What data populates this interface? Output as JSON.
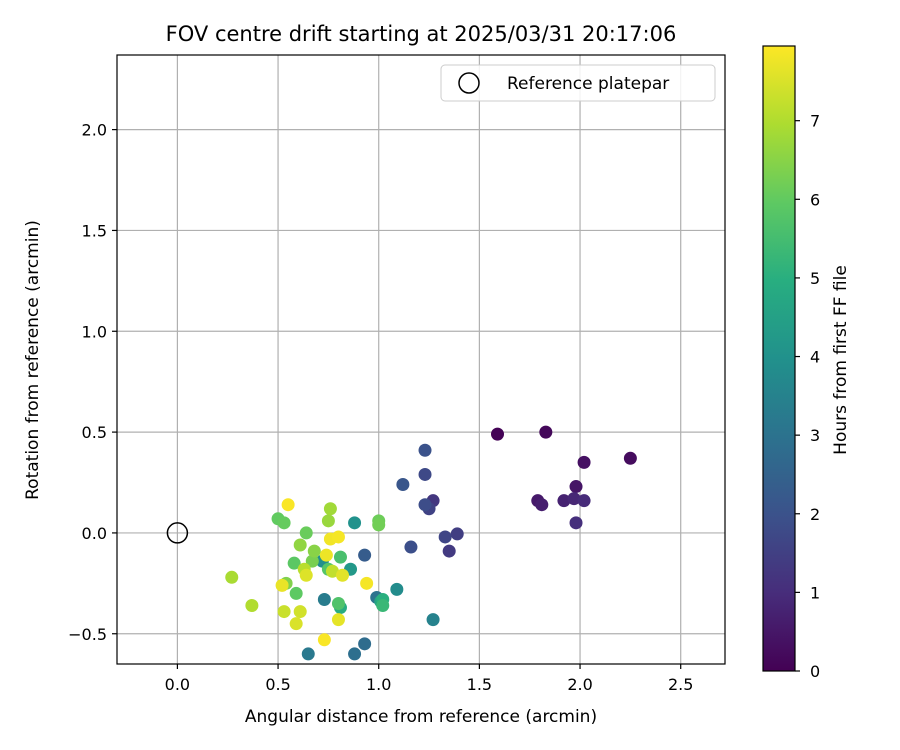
{
  "chart_data": {
    "type": "scatter",
    "title": "FOV centre drift starting at 2025/03/31 20:17:06",
    "xlabel": "Angular distance from reference (arcmin)",
    "ylabel": "Rotation from reference (arcmin)",
    "colorbar_label": "Hours from first FF file",
    "xlim": [
      -0.3,
      2.72
    ],
    "ylim": [
      -0.65,
      2.37
    ],
    "xticks": [
      0.0,
      0.5,
      1.0,
      1.5,
      2.0,
      2.5
    ],
    "xtick_labels": [
      "0.0",
      "0.5",
      "1.0",
      "1.5",
      "2.0",
      "2.5"
    ],
    "yticks": [
      -0.5,
      0.0,
      0.5,
      1.0,
      1.5,
      2.0
    ],
    "ytick_labels": [
      "−0.5",
      "0.0",
      "0.5",
      "1.0",
      "1.5",
      "2.0"
    ],
    "colorbar_range": [
      0,
      7.95
    ],
    "colorbar_ticks": [
      0,
      1,
      2,
      3,
      4,
      5,
      6,
      7
    ],
    "colorbar_tick_labels": [
      "0",
      "1",
      "2",
      "3",
      "4",
      "5",
      "6",
      "7"
    ],
    "colormap": "viridis",
    "grid": true,
    "legend": {
      "position": "top-right",
      "label": "Reference platepar"
    },
    "reference_point": {
      "x": 0.0,
      "y": 0.0
    },
    "points": [
      {
        "x": 1.59,
        "y": 0.49,
        "c": 0.05
      },
      {
        "x": 1.83,
        "y": 0.5,
        "c": 0.15
      },
      {
        "x": 2.25,
        "y": 0.37,
        "c": 0.25
      },
      {
        "x": 2.02,
        "y": 0.35,
        "c": 0.35
      },
      {
        "x": 1.98,
        "y": 0.23,
        "c": 0.45
      },
      {
        "x": 1.79,
        "y": 0.16,
        "c": 0.55
      },
      {
        "x": 1.81,
        "y": 0.14,
        "c": 0.65
      },
      {
        "x": 1.92,
        "y": 0.16,
        "c": 0.75
      },
      {
        "x": 1.97,
        "y": 0.17,
        "c": 0.85
      },
      {
        "x": 2.02,
        "y": 0.16,
        "c": 0.95
      },
      {
        "x": 1.98,
        "y": 0.05,
        "c": 1.05
      },
      {
        "x": 1.27,
        "y": 0.16,
        "c": 1.25
      },
      {
        "x": 1.35,
        "y": -0.09,
        "c": 1.35
      },
      {
        "x": 1.39,
        "y": -0.005,
        "c": 1.45
      },
      {
        "x": 1.25,
        "y": 0.12,
        "c": 1.55
      },
      {
        "x": 1.33,
        "y": -0.02,
        "c": 1.65
      },
      {
        "x": 1.23,
        "y": 0.29,
        "c": 1.75
      },
      {
        "x": 1.23,
        "y": 0.14,
        "c": 1.85
      },
      {
        "x": 1.16,
        "y": -0.07,
        "c": 1.9
      },
      {
        "x": 1.23,
        "y": 0.41,
        "c": 2.0
      },
      {
        "x": 1.12,
        "y": 0.24,
        "c": 2.1
      },
      {
        "x": 0.93,
        "y": -0.11,
        "c": 2.3
      },
      {
        "x": 0.93,
        "y": -0.55,
        "c": 2.8
      },
      {
        "x": 0.88,
        "y": -0.6,
        "c": 2.9
      },
      {
        "x": 0.99,
        "y": -0.32,
        "c": 3.0
      },
      {
        "x": 0.65,
        "y": -0.6,
        "c": 3.2
      },
      {
        "x": 0.73,
        "y": -0.33,
        "c": 3.3
      },
      {
        "x": 1.27,
        "y": -0.43,
        "c": 3.5
      },
      {
        "x": 1.09,
        "y": -0.28,
        "c": 3.8
      },
      {
        "x": 0.72,
        "y": -0.14,
        "c": 3.9
      },
      {
        "x": 0.88,
        "y": 0.05,
        "c": 4.0
      },
      {
        "x": 0.86,
        "y": -0.18,
        "c": 4.2
      },
      {
        "x": 1.01,
        "y": -0.34,
        "c": 4.6
      },
      {
        "x": 0.81,
        "y": -0.37,
        "c": 4.9
      },
      {
        "x": 1.02,
        "y": -0.33,
        "c": 5.0
      },
      {
        "x": 1.02,
        "y": -0.36,
        "c": 5.3
      },
      {
        "x": 0.81,
        "y": -0.12,
        "c": 5.6
      },
      {
        "x": 0.8,
        "y": -0.35,
        "c": 5.7
      },
      {
        "x": 0.75,
        "y": -0.18,
        "c": 5.8
      },
      {
        "x": 0.58,
        "y": -0.15,
        "c": 5.9
      },
      {
        "x": 0.59,
        "y": -0.3,
        "c": 5.95
      },
      {
        "x": 0.5,
        "y": 0.07,
        "c": 6.0
      },
      {
        "x": 0.53,
        "y": 0.05,
        "c": 6.05
      },
      {
        "x": 0.64,
        "y": 0.0,
        "c": 6.1
      },
      {
        "x": 1.0,
        "y": 0.06,
        "c": 6.15
      },
      {
        "x": 1.0,
        "y": 0.04,
        "c": 6.2
      },
      {
        "x": 0.67,
        "y": -0.14,
        "c": 6.3
      },
      {
        "x": 0.54,
        "y": -0.25,
        "c": 6.4
      },
      {
        "x": 0.68,
        "y": -0.09,
        "c": 6.5
      },
      {
        "x": 0.61,
        "y": -0.06,
        "c": 6.6
      },
      {
        "x": 0.75,
        "y": 0.06,
        "c": 6.7
      },
      {
        "x": 0.76,
        "y": 0.12,
        "c": 6.8
      },
      {
        "x": 0.27,
        "y": -0.22,
        "c": 6.9
      },
      {
        "x": 0.37,
        "y": -0.36,
        "c": 7.0
      },
      {
        "x": 0.63,
        "y": -0.18,
        "c": 7.1
      },
      {
        "x": 0.77,
        "y": -0.19,
        "c": 7.2
      },
      {
        "x": 0.53,
        "y": -0.39,
        "c": 7.3
      },
      {
        "x": 0.61,
        "y": -0.39,
        "c": 7.4
      },
      {
        "x": 0.59,
        "y": -0.45,
        "c": 7.5
      },
      {
        "x": 0.64,
        "y": -0.21,
        "c": 7.55
      },
      {
        "x": 0.82,
        "y": -0.21,
        "c": 7.6
      },
      {
        "x": 0.8,
        "y": -0.43,
        "c": 7.65
      },
      {
        "x": 0.52,
        "y": -0.26,
        "c": 7.7
      },
      {
        "x": 0.74,
        "y": -0.11,
        "c": 7.75
      },
      {
        "x": 0.76,
        "y": -0.03,
        "c": 7.8
      },
      {
        "x": 0.8,
        "y": -0.02,
        "c": 7.85
      },
      {
        "x": 0.94,
        "y": -0.25,
        "c": 7.85
      },
      {
        "x": 0.73,
        "y": -0.53,
        "c": 7.9
      },
      {
        "x": 0.55,
        "y": 0.14,
        "c": 7.9
      }
    ]
  }
}
